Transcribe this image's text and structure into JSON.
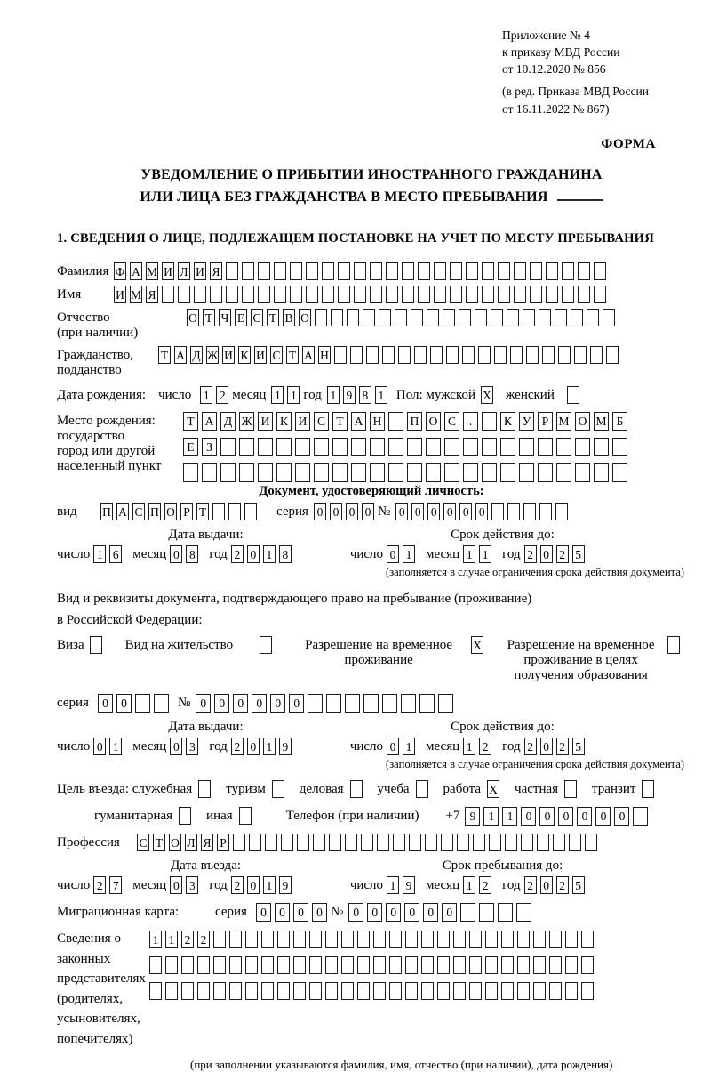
{
  "doc": {
    "ref_lines": [
      "Приложение № 4",
      "к приказу МВД России",
      "от 10.12.2020 № 856",
      "(в ред. Приказа МВД России",
      "от 16.11.2022 № 867)"
    ],
    "form_label": "ФОРМА",
    "title_line1": "УВЕДОМЛЕНИЕ О ПРИБЫТИИ ИНОСТРАННОГО ГРАЖДАНИНА",
    "title_line2": "ИЛИ ЛИЦА БЕЗ ГРАЖДАНСТВА В МЕСТО ПРЕБЫВАНИЯ",
    "section1_title": "1. СВЕДЕНИЯ О ЛИЦЕ, ПОДЛЕЖАЩЕМ ПОСТАНОВКЕ НА УЧЕТ ПО МЕСТУ ПРЕБЫВАНИЯ"
  },
  "labels": {
    "last_name": "Фамилия",
    "first_name": "Имя",
    "middle_name": "Отчество",
    "if_available": "(при наличии)",
    "citizenship1": "Гражданство,",
    "citizenship2": "подданство",
    "birth_date": "Дата рождения:",
    "day": "число",
    "month": "месяц",
    "year": "год",
    "sex_male": "Пол: мужской",
    "sex_female": "женский",
    "birth_place1": "Место рождения:",
    "birth_place2": "государство",
    "birth_place3": "город или другой",
    "birth_place4": "населенный пункт",
    "identity_doc_header": "Документ, удостоверяющий личность:",
    "doc_type": "вид",
    "series": "серия",
    "number": "№",
    "issue_date": "Дата выдачи:",
    "valid_until": "Срок действия до:",
    "valid_note": "(заполняется в случае ограничения срока действия документа)",
    "residence_doc_line1": "Вид и реквизиты документа, подтверждающего право на пребывание (проживание)",
    "residence_doc_line2": "в Российской Федерации:",
    "visa": "Виза",
    "residence_permit": "Вид на жительство",
    "temp_residence": "Разрешение на временное проживание",
    "temp_residence_edu": "Разрешение на временное проживание в целях получения образования",
    "purpose": "Цель въезда: служебная",
    "tourism": "туризм",
    "business": "деловая",
    "study": "учеба",
    "work": "работа",
    "private": "частная",
    "transit": "транзит",
    "humanitarian": "гуманитарная",
    "other": "иная",
    "phone": "Телефон (при наличии)",
    "phone_prefix": "+7",
    "profession": "Профессия",
    "entry_date": "Дата въезда:",
    "stay_until": "Срок пребывания до:",
    "migration_card": "Миграционная карта:",
    "representatives": [
      "Сведения о",
      "законных",
      "представителях",
      "(родителях,",
      "усыновителях,",
      "попечителях)"
    ],
    "representatives_note": "(при заполнении указываются фамилия, имя, отчество (при наличии), дата рождения)"
  },
  "values": {
    "last_name": "ФАМИЛИЯ",
    "first_name": "ИМЯ",
    "middle_name": "ОТЧЕСТВО",
    "citizenship": "ТАДЖИКИСТАН",
    "birth_day": "12",
    "birth_month": "11",
    "birth_year": "1981",
    "sex_male_mark": "X",
    "sex_female_mark": "",
    "birth_place_row1": "ТАДЖИКИСТАН ПОС. КУРМОМБ",
    "birth_place_row2": "ЕЗ",
    "birth_place_row3": "",
    "id_doc_type": "ПАСПОРТ",
    "id_doc_series": "0000",
    "id_doc_number": "000000",
    "id_issue_day": "16",
    "id_issue_month": "08",
    "id_issue_year": "2018",
    "id_valid_day": "01",
    "id_valid_month": "11",
    "id_valid_year": "2025",
    "visa_mark": "",
    "residence_permit_mark": "",
    "temp_residence_mark": "X",
    "temp_residence_edu_mark": "",
    "res_doc_series": "00",
    "res_doc_number": "000000",
    "res_issue_day": "01",
    "res_issue_month": "03",
    "res_issue_year": "2019",
    "res_valid_day": "01",
    "res_valid_month": "12",
    "res_valid_year": "2025",
    "purpose_official_mark": "",
    "purpose_tourism_mark": "",
    "purpose_business_mark": "",
    "purpose_study_mark": "",
    "purpose_work_mark": "X",
    "purpose_private_mark": "",
    "purpose_transit_mark": "",
    "purpose_humanitarian_mark": "",
    "purpose_other_mark": "",
    "phone_number": "911000000",
    "profession": "СТОЛЯР",
    "entry_day": "27",
    "entry_month": "03",
    "entry_year": "2019",
    "stay_day": "19",
    "stay_month": "12",
    "stay_year": "2025",
    "mc_series": "0000",
    "mc_number": "000000",
    "rep_row1": "1122",
    "rep_row2": "",
    "rep_row3": ""
  }
}
